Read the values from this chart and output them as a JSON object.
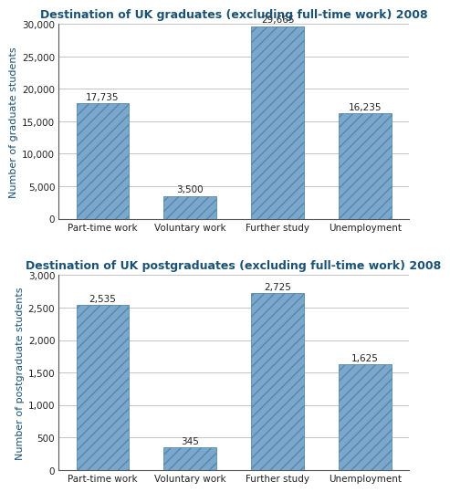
{
  "grad_title": "Destination of UK graduates (excluding full-time work) 2008",
  "grad_categories": [
    "Part-time work",
    "Voluntary work",
    "Further study",
    "Unemployment"
  ],
  "grad_values": [
    17735,
    3500,
    29665,
    16235
  ],
  "grad_labels": [
    "17,735",
    "3,500",
    "29,665",
    "16,235"
  ],
  "grad_ylabel": "Number of graduate students",
  "grad_ylim": [
    0,
    30000
  ],
  "grad_yticks": [
    0,
    5000,
    10000,
    15000,
    20000,
    25000,
    30000
  ],
  "grad_ytick_labels": [
    "0",
    "5,000",
    "10,000",
    "15,000",
    "20,000",
    "25,000",
    "30,000"
  ],
  "post_title": "Destination of UK postgraduates (excluding full-time work) 2008",
  "post_categories": [
    "Part-time work",
    "Voluntary work",
    "Further study",
    "Unemployment"
  ],
  "post_values": [
    2535,
    345,
    2725,
    1625
  ],
  "post_labels": [
    "2,535",
    "345",
    "2,725",
    "1,625"
  ],
  "post_ylabel": "Number of postgraduate students",
  "post_ylim": [
    0,
    3000
  ],
  "post_yticks": [
    0,
    500,
    1000,
    1500,
    2000,
    2500,
    3000
  ],
  "post_ytick_labels": [
    "0",
    "500",
    "1,000",
    "1,500",
    "2,000",
    "2,500",
    "3,000"
  ],
  "bar_color": "#7BA7CC",
  "bar_edge_color": "#5588AA",
  "title_color": "#1A5276",
  "label_color": "#222222",
  "axis_label_color": "#1A5276",
  "title_fontsize": 9.0,
  "label_fontsize": 7.5,
  "tick_fontsize": 7.5,
  "ylabel_fontsize": 8.0,
  "background_color": "#ffffff",
  "grid_color": "#bbbbbb"
}
